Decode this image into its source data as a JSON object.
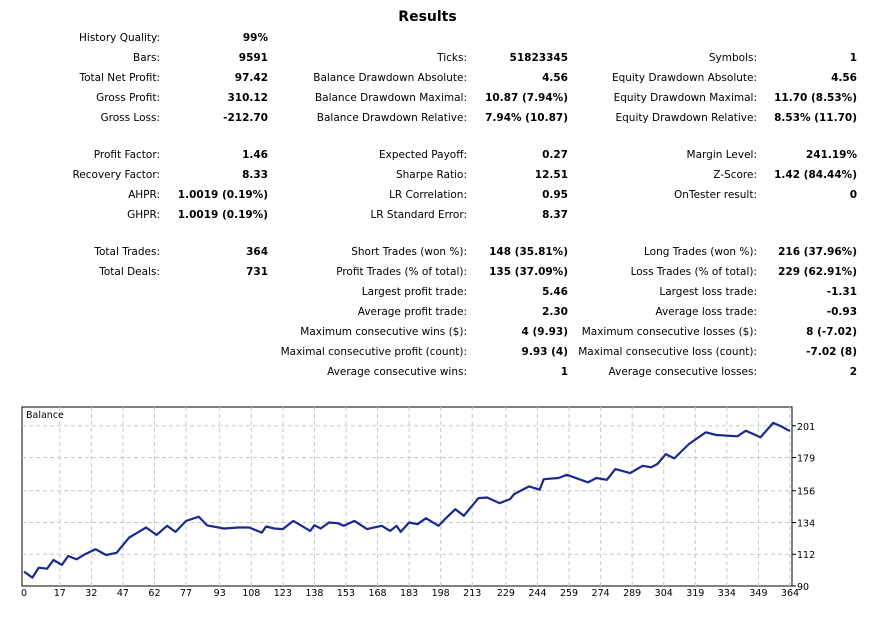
{
  "title": "Results",
  "rows": [
    {
      "y": "r1",
      "cells": [
        "History Quality:",
        "99%",
        "",
        "",
        "",
        ""
      ]
    },
    {
      "y": "r2",
      "cells": [
        "Bars:",
        "9591",
        "Ticks:",
        "51823345",
        "Symbols:",
        "1"
      ]
    },
    {
      "y": "r3",
      "cells": [
        "Total Net Profit:",
        "97.42",
        "Balance Drawdown Absolute:",
        "4.56",
        "Equity Drawdown Absolute:",
        "4.56"
      ]
    },
    {
      "y": "r4",
      "cells": [
        "Gross Profit:",
        "310.12",
        "Balance Drawdown Maximal:",
        "10.87 (7.94%)",
        "Equity Drawdown Maximal:",
        "11.70 (8.53%)"
      ]
    },
    {
      "y": "r5",
      "cells": [
        "Gross Loss:",
        "-212.70",
        "Balance Drawdown Relative:",
        "7.94% (10.87)",
        "Equity Drawdown Relative:",
        "8.53% (11.70)"
      ]
    },
    {
      "y": "r6",
      "cells": [
        "Profit Factor:",
        "1.46",
        "Expected Payoff:",
        "0.27",
        "Margin Level:",
        "241.19%"
      ]
    },
    {
      "y": "r7",
      "cells": [
        "Recovery Factor:",
        "8.33",
        "Sharpe Ratio:",
        "12.51",
        "Z-Score:",
        "1.42 (84.44%)"
      ]
    },
    {
      "y": "r8",
      "cells": [
        "AHPR:",
        "1.0019 (0.19%)",
        "LR Correlation:",
        "0.95",
        "OnTester result:",
        "0"
      ]
    },
    {
      "y": "r9",
      "cells": [
        "GHPR:",
        "1.0019 (0.19%)",
        "LR Standard Error:",
        "8.37",
        "",
        ""
      ]
    },
    {
      "y": "r10",
      "cells": [
        "Total Trades:",
        "364",
        "Short Trades (won %):",
        "148 (35.81%)",
        "Long Trades (won %):",
        "216 (37.96%)"
      ]
    },
    {
      "y": "r11",
      "cells": [
        "Total Deals:",
        "731",
        "Profit Trades (% of total):",
        "135 (37.09%)",
        "Loss Trades (% of total):",
        "229 (62.91%)"
      ]
    },
    {
      "y": "r12",
      "cells": [
        "",
        "",
        "Largest profit trade:",
        "5.46",
        "Largest loss trade:",
        "-1.31"
      ]
    },
    {
      "y": "r13",
      "cells": [
        "",
        "",
        "Average profit trade:",
        "2.30",
        "Average loss trade:",
        "-0.93"
      ]
    },
    {
      "y": "r14",
      "cells": [
        "",
        "",
        "Maximum consecutive wins ($):",
        "4 (9.93)",
        "Maximum consecutive losses ($):",
        "8 (-7.02)"
      ]
    },
    {
      "y": "r15",
      "cells": [
        "",
        "",
        "Maximal consecutive profit (count):",
        "9.93 (4)",
        "Maximal consecutive loss (count):",
        "-7.02 (8)"
      ]
    },
    {
      "y": "r16",
      "cells": [
        "",
        "",
        "Average consecutive wins:",
        "1",
        "Average consecutive losses:",
        "2"
      ]
    }
  ],
  "chart_data": {
    "type": "line",
    "legend": "Balance",
    "line_color": "#1a2a8c",
    "grid": true,
    "xlim": [
      0,
      364
    ],
    "ylim": [
      90,
      214
    ],
    "x_ticks": [
      0,
      17,
      32,
      47,
      62,
      77,
      93,
      108,
      123,
      138,
      153,
      168,
      183,
      198,
      213,
      229,
      244,
      259,
      274,
      289,
      304,
      319,
      334,
      349,
      364
    ],
    "y_ticks": [
      90,
      112,
      134,
      156,
      179,
      201
    ],
    "series": [
      {
        "name": "Balance",
        "x": [
          0,
          4,
          7,
          11,
          14,
          18,
          21,
          25,
          29,
          34,
          39,
          44,
          50,
          54,
          58,
          63,
          68,
          72,
          77,
          83,
          87,
          95,
          102,
          107,
          113,
          115,
          119,
          123,
          128,
          136,
          138,
          141,
          145,
          149,
          152,
          157,
          163,
          170,
          174,
          177,
          179,
          183,
          187,
          191,
          197,
          200,
          205,
          209,
          216,
          220,
          226,
          231,
          233,
          240,
          245,
          247,
          254,
          258,
          268,
          272,
          277,
          281,
          288,
          294,
          298,
          301,
          305,
          309,
          316,
          324,
          329,
          339,
          343,
          350,
          356,
          360,
          363,
          364
        ],
        "y": [
          100,
          95.8,
          102.7,
          102,
          108,
          104.6,
          110.8,
          108.5,
          112,
          115.5,
          111.5,
          113,
          123.6,
          127,
          130.5,
          125.4,
          131.7,
          127.5,
          135,
          138,
          132,
          129.8,
          130.5,
          130.5,
          127,
          131.2,
          129.8,
          129.4,
          135.1,
          128.2,
          132.1,
          129.8,
          134,
          133.5,
          131.7,
          135.1,
          129.4,
          131.7,
          128.2,
          131.7,
          127.5,
          134,
          132.8,
          137,
          131.7,
          136.3,
          143.2,
          138.6,
          150.9,
          151.3,
          147.4,
          150.2,
          153.7,
          159,
          156.7,
          164,
          164.8,
          167,
          161.8,
          164.8,
          163.6,
          171,
          168.2,
          173.3,
          172.2,
          174.5,
          181.4,
          178.4,
          188.4,
          196.5,
          194.6,
          193.7,
          197.6,
          193,
          203,
          200.5,
          198,
          197.42
        ]
      }
    ]
  }
}
